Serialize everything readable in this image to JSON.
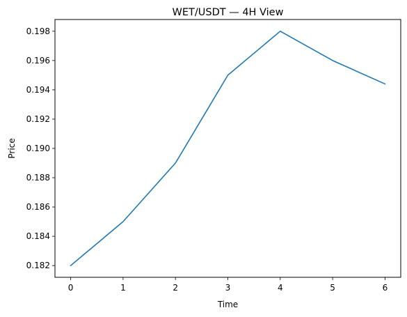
{
  "chart_data": {
    "type": "line",
    "title": "WET/USDT — 4H View",
    "xlabel": "Time",
    "ylabel": "Price",
    "x": [
      0,
      1,
      2,
      3,
      4,
      5,
      6
    ],
    "series": [
      {
        "values": [
          0.182,
          0.185,
          0.189,
          0.195,
          0.198,
          0.196,
          0.1944
        ],
        "color": "#1f77b4"
      }
    ],
    "xticks": [
      "0",
      "1",
      "2",
      "3",
      "4",
      "5",
      "6"
    ],
    "yticks": [
      "0.182",
      "0.184",
      "0.186",
      "0.188",
      "0.190",
      "0.192",
      "0.194",
      "0.196",
      "0.198"
    ],
    "xlim": [
      -0.3,
      6.3
    ],
    "ylim": [
      0.1812,
      0.1988
    ],
    "grid": false,
    "legend": "none"
  }
}
